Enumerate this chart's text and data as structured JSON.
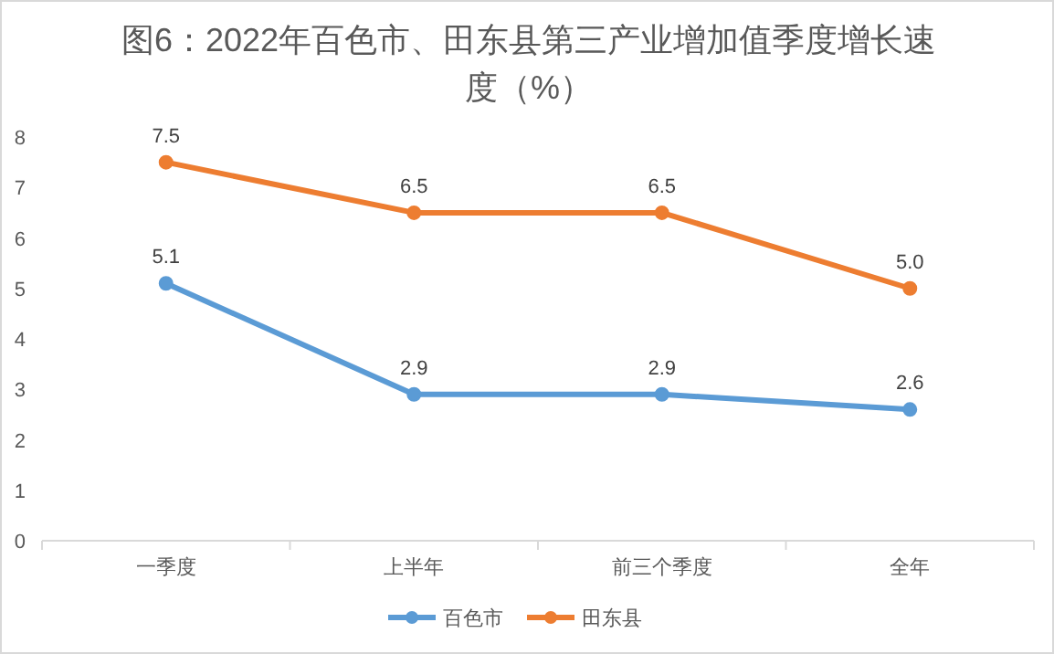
{
  "chart_data": {
    "type": "line",
    "title": "图6：2022年百色市、田东县第三产业增加值季度增长速度（%）",
    "categories": [
      "一季度",
      "上半年",
      "前三个季度",
      "全年"
    ],
    "series": [
      {
        "name": "百色市",
        "color": "#5b9bd5",
        "values": [
          5.1,
          2.9,
          2.9,
          2.6
        ],
        "value_labels": [
          "5.1",
          "2.9",
          "2.9",
          "2.6"
        ]
      },
      {
        "name": "田东县",
        "color": "#ed7d31",
        "values": [
          7.5,
          6.5,
          6.5,
          5.0
        ],
        "value_labels": [
          "7.5",
          "6.5",
          "6.5",
          "5.0"
        ]
      }
    ],
    "ylim": [
      0,
      8
    ],
    "yticks": [
      0,
      1,
      2,
      3,
      4,
      5,
      6,
      7,
      8
    ],
    "grid": false,
    "legend": "bottom",
    "marker": "circle",
    "line_style": "solid"
  }
}
